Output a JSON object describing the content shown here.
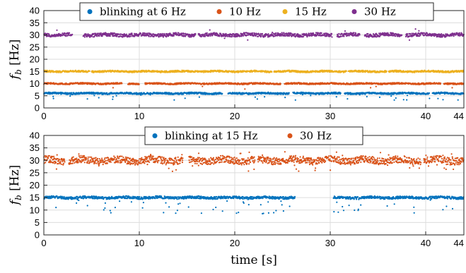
{
  "chart_data": [
    {
      "type": "scatter",
      "title": "",
      "xlabel": "",
      "ylabel": "f_b [Hz]",
      "ylabel_main": "f",
      "ylabel_sub": "b",
      "ylabel_unit": "[Hz]",
      "xlim": [
        0,
        44
      ],
      "ylim": [
        0,
        40
      ],
      "xticks": [
        0,
        10,
        20,
        30,
        40,
        44
      ],
      "yticks": [
        0,
        5,
        10,
        15,
        20,
        25,
        30,
        35,
        40
      ],
      "grid": true,
      "legend_position": "top",
      "series": [
        {
          "name": "blinking at 6 Hz",
          "color": "#0072BD",
          "level": 6,
          "spread": 0.35,
          "outlier_rate": 0.03,
          "outlier_low": 3.2,
          "outlier_high": 6,
          "gaps": [
            [
              18.7,
              19.3
            ],
            [
              25.7,
              26.1
            ],
            [
              31.1,
              31.5
            ],
            [
              40.4,
              40.7
            ]
          ]
        },
        {
          "name": "10 Hz",
          "color": "#D95319",
          "level": 10,
          "spread": 0.3,
          "outlier_rate": 0.008,
          "outlier_low": 7.5,
          "outlier_high": 10,
          "gaps": [
            [
              8.2,
              8.8
            ],
            [
              10.0,
              10.6
            ],
            [
              24.8,
              25.2
            ],
            [
              41.6,
              41.9
            ]
          ]
        },
        {
          "name": "15 Hz",
          "color": "#EDB120",
          "level": 15,
          "spread": 0.35,
          "outlier_rate": 0.0,
          "outlier_low": 14,
          "outlier_high": 15,
          "gaps": [
            [
              4.8,
              5.0
            ],
            [
              23.9,
              24.1
            ],
            [
              31.7,
              31.9
            ],
            [
              35.9,
              36.1
            ]
          ]
        },
        {
          "name": "30 Hz",
          "color": "#7E2F8E",
          "level": 30,
          "spread": 0.7,
          "outlier_rate": 0.006,
          "outlier_low": 27.5,
          "outlier_high": 32.5,
          "gaps": [
            [
              3.0,
              4.1
            ],
            [
              15.9,
              16.2
            ],
            [
              30.2,
              30.7
            ],
            [
              33.1,
              33.6
            ],
            [
              37.5,
              37.9
            ]
          ]
        }
      ]
    },
    {
      "type": "scatter",
      "title": "",
      "xlabel": "time [s]",
      "xlabel_main": "time",
      "xlabel_unit": "[s]",
      "ylabel": "f_b [Hz]",
      "ylabel_main": "f",
      "ylabel_sub": "b",
      "ylabel_unit": "[Hz]",
      "xlim": [
        0,
        44
      ],
      "ylim": [
        0,
        40
      ],
      "xticks": [
        0,
        10,
        20,
        30,
        40,
        44
      ],
      "yticks": [
        0,
        5,
        10,
        15,
        20,
        25,
        30,
        35,
        40
      ],
      "grid": true,
      "legend_position": "top",
      "series": [
        {
          "name": "blinking at 15 Hz",
          "color": "#0072BD",
          "level": 15,
          "spread": 0.5,
          "outlier_rate": 0.05,
          "outlier_low": 8.5,
          "outlier_high": 15,
          "gaps": [
            [
              26.3,
              30.3
            ]
          ]
        },
        {
          "name": "30 Hz",
          "color": "#D95319",
          "level": 30,
          "spread": 1.4,
          "outlier_rate": 0.05,
          "outlier_low": 25.5,
          "outlier_high": 33.5,
          "gaps": [
            [
              2.2,
              2.6
            ],
            [
              14.6,
              15.2
            ],
            [
              22.1,
              22.4
            ],
            [
              39.5,
              39.8
            ]
          ]
        }
      ]
    }
  ]
}
